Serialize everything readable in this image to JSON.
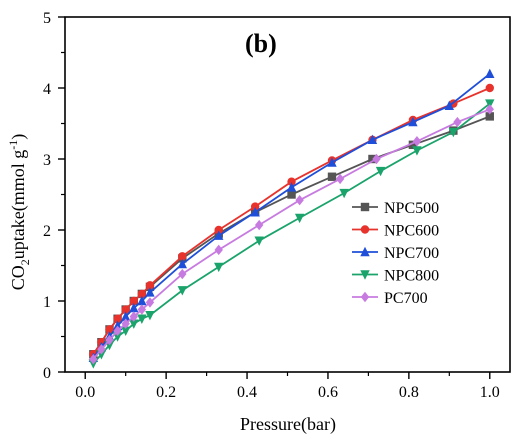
{
  "chart_data": {
    "type": "line",
    "panel_label": "(b)",
    "xlabel": "Pressure(bar)",
    "ylabel": {
      "prefix": "CO",
      "sub": "2",
      "mid": "uptake(mmol g",
      "sup": "-1",
      "suffix": ")"
    },
    "xlim": [
      -0.05,
      1.05
    ],
    "ylim": [
      0,
      5
    ],
    "xticks": [
      0.0,
      0.2,
      0.4,
      0.6,
      0.8,
      1.0
    ],
    "xtick_labels": [
      "0.0",
      "0.2",
      "0.4",
      "0.6",
      "0.8",
      "1.0"
    ],
    "yticks": [
      0,
      1,
      2,
      3,
      4,
      5
    ],
    "ytick_labels": [
      "0",
      "1",
      "2",
      "3",
      "4",
      "5"
    ],
    "grid": false,
    "legend_position": "right",
    "series": [
      {
        "name": "NPC500",
        "color": "#555555",
        "marker": "square",
        "x": [
          0.02,
          0.04,
          0.06,
          0.08,
          0.1,
          0.12,
          0.14,
          0.16,
          0.24,
          0.33,
          0.42,
          0.51,
          0.61,
          0.71,
          0.81,
          0.91,
          1.0
        ],
        "y": [
          0.25,
          0.42,
          0.6,
          0.75,
          0.88,
          1.0,
          1.1,
          1.2,
          1.6,
          1.95,
          2.25,
          2.5,
          2.75,
          3.0,
          3.2,
          3.4,
          3.6
        ]
      },
      {
        "name": "NPC600",
        "color": "#e8322c",
        "marker": "circle",
        "x": [
          0.02,
          0.04,
          0.06,
          0.08,
          0.1,
          0.12,
          0.14,
          0.16,
          0.24,
          0.33,
          0.42,
          0.51,
          0.61,
          0.71,
          0.81,
          0.91,
          1.0
        ],
        "y": [
          0.25,
          0.42,
          0.6,
          0.75,
          0.88,
          1.0,
          1.1,
          1.22,
          1.63,
          2.0,
          2.33,
          2.68,
          2.98,
          3.27,
          3.55,
          3.78,
          4.0
        ]
      },
      {
        "name": "NPC700",
        "color": "#1f4fd8",
        "marker": "triangle-up",
        "x": [
          0.02,
          0.04,
          0.06,
          0.08,
          0.1,
          0.12,
          0.14,
          0.16,
          0.24,
          0.33,
          0.42,
          0.51,
          0.61,
          0.71,
          0.81,
          0.9,
          1.0
        ],
        "y": [
          0.2,
          0.35,
          0.5,
          0.65,
          0.78,
          0.9,
          1.0,
          1.12,
          1.52,
          1.92,
          2.25,
          2.6,
          2.95,
          3.27,
          3.52,
          3.75,
          4.2
        ]
      },
      {
        "name": "NPC800",
        "color": "#1aa36a",
        "marker": "triangle-down",
        "x": [
          0.02,
          0.04,
          0.06,
          0.08,
          0.1,
          0.12,
          0.14,
          0.16,
          0.24,
          0.33,
          0.43,
          0.53,
          0.64,
          0.73,
          0.82,
          0.91,
          1.0
        ],
        "y": [
          0.12,
          0.25,
          0.38,
          0.5,
          0.58,
          0.68,
          0.75,
          0.8,
          1.15,
          1.48,
          1.85,
          2.17,
          2.52,
          2.83,
          3.12,
          3.38,
          3.78
        ]
      },
      {
        "name": "PC700",
        "color": "#c77be0",
        "marker": "diamond",
        "x": [
          0.02,
          0.04,
          0.06,
          0.08,
          0.1,
          0.12,
          0.14,
          0.16,
          0.24,
          0.33,
          0.43,
          0.53,
          0.63,
          0.72,
          0.82,
          0.92,
          1.0
        ],
        "y": [
          0.18,
          0.32,
          0.45,
          0.58,
          0.68,
          0.78,
          0.88,
          0.98,
          1.38,
          1.72,
          2.07,
          2.42,
          2.72,
          3.0,
          3.25,
          3.52,
          3.7
        ]
      }
    ]
  }
}
